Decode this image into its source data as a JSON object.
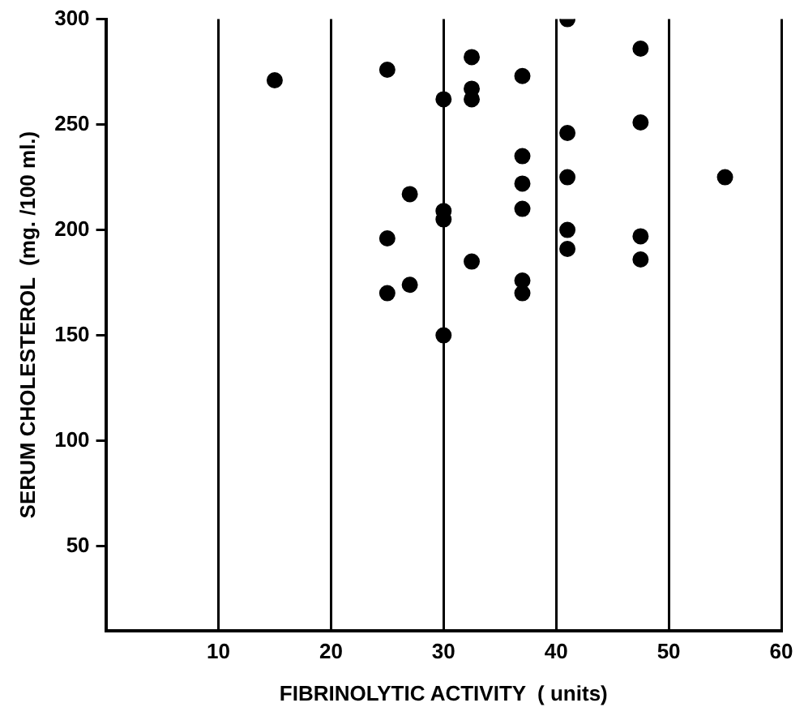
{
  "chart_data": {
    "type": "scatter",
    "xlabel": "FIBRINOLYTIC ACTIVITY  ( units)",
    "ylabel": "SERUM CHOLESTEROL  (mg. /100 ml.)",
    "x": [
      15,
      25,
      30,
      27,
      30,
      30,
      25,
      27,
      25,
      30,
      41,
      47.5,
      32.5,
      37,
      32.5,
      32.5,
      41,
      47.5,
      37,
      37,
      41,
      55,
      37,
      41,
      47.5,
      41,
      47.5,
      32.5,
      37,
      37
    ],
    "values": [
      271,
      276,
      262,
      217,
      209,
      205,
      196,
      174,
      170,
      150,
      300,
      286,
      282,
      273,
      267,
      262,
      246,
      251,
      235,
      222,
      225,
      225,
      210,
      200,
      197,
      191,
      186,
      185,
      176,
      170
    ],
    "color": "#000000",
    "marker": "circle",
    "xlim": [
      0,
      60
    ],
    "xticks": [
      10,
      20,
      30,
      40,
      50,
      60
    ],
    "ylim": [
      10,
      300
    ],
    "yticks": [
      50,
      100,
      150,
      200,
      250,
      300
    ],
    "grid": "x",
    "legend": false
  }
}
